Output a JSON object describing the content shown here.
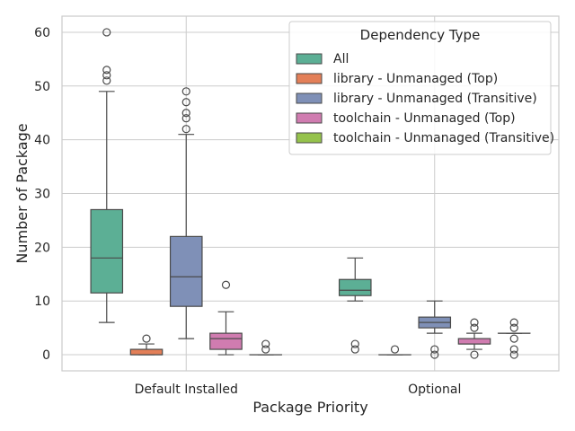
{
  "chart_data": {
    "type": "boxplot",
    "title": "",
    "xlabel": "Package Priority",
    "ylabel": "Number of Package",
    "ylim": [
      -3,
      63
    ],
    "yticks": [
      0,
      10,
      20,
      30,
      40,
      50,
      60
    ],
    "grid": true,
    "categories": [
      "Default Installed",
      "Optional"
    ],
    "legend": {
      "title": "Dependency Type",
      "placement": "top-right"
    },
    "series": [
      {
        "name": "All",
        "color": "#66c2a5",
        "boxes": [
          {
            "q1": 11.5,
            "median": 18,
            "q3": 27,
            "whisker_low": 6,
            "whisker_high": 49,
            "outliers": [
              51,
              52,
              53,
              60
            ]
          },
          {
            "q1": 11,
            "median": 12,
            "q3": 14,
            "whisker_low": 10,
            "whisker_high": 18,
            "outliers": [
              1,
              2
            ]
          }
        ]
      },
      {
        "name": "library - Unmanaged (Top)",
        "color": "#fc8d62",
        "boxes": [
          {
            "q1": 0,
            "median": 0,
            "q3": 1,
            "whisker_low": 0,
            "whisker_high": 2,
            "outliers": [
              3
            ]
          },
          {
            "q1": 0,
            "median": 0,
            "q3": 0,
            "whisker_low": 0,
            "whisker_high": 0,
            "outliers": [
              1
            ]
          }
        ]
      },
      {
        "name": "library - Unmanaged (Transitive)",
        "color": "#8da0cb",
        "boxes": [
          {
            "q1": 9,
            "median": 14.5,
            "q3": 22,
            "whisker_low": 3,
            "whisker_high": 41,
            "outliers": [
              42,
              44,
              45,
              47,
              49
            ]
          },
          {
            "q1": 5,
            "median": 6,
            "q3": 7,
            "whisker_low": 4,
            "whisker_high": 10,
            "outliers": [
              0,
              1
            ]
          }
        ]
      },
      {
        "name": "toolchain - Unmanaged (Top)",
        "color": "#e78ac3",
        "boxes": [
          {
            "q1": 1,
            "median": 3,
            "q3": 4,
            "whisker_low": 0,
            "whisker_high": 8,
            "outliers": [
              13
            ]
          },
          {
            "q1": 2,
            "median": 2,
            "q3": 3,
            "whisker_low": 1,
            "whisker_high": 4,
            "outliers": [
              0,
              5,
              6
            ]
          }
        ]
      },
      {
        "name": "toolchain - Unmanaged (Transitive)",
        "color": "#a6d854",
        "boxes": [
          {
            "q1": 0,
            "median": 0,
            "q3": 0,
            "whisker_low": 0,
            "whisker_high": 0,
            "outliers": [
              1,
              2
            ]
          },
          {
            "q1": 4,
            "median": 4,
            "q3": 4,
            "whisker_low": 4,
            "whisker_high": 4,
            "outliers": [
              0,
              1,
              3,
              5,
              6
            ]
          }
        ]
      }
    ]
  }
}
